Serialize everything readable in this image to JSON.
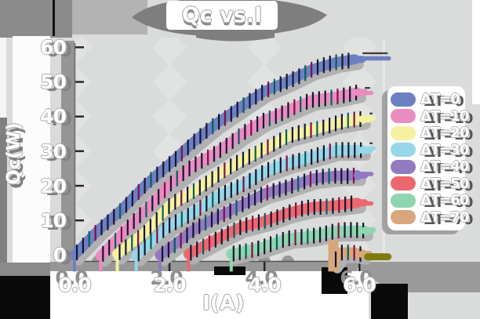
{
  "title": "Qc vs.I",
  "chart_data": {
    "type": "line",
    "title": "Qc vs.I",
    "xlabel": "I(A)",
    "ylabel": "Qc(W)",
    "xlim": [
      0,
      6.6
    ],
    "ylim": [
      0,
      62
    ],
    "xticks": [
      "0.0",
      "2.0",
      "4.0",
      "6.0"
    ],
    "xtick_values": [
      0,
      2,
      4,
      6
    ],
    "yticks": [
      "0",
      "10",
      "20",
      "30",
      "40",
      "50",
      "60"
    ],
    "ytick_values": [
      0,
      10,
      20,
      30,
      40,
      50,
      60
    ],
    "grid": "diamond-pattern columns at x gridlines",
    "legend_position": "right",
    "series": [
      {
        "name": "ΔT=0",
        "color": "#6d80c2",
        "points": [
          [
            0,
            0
          ],
          [
            0.5,
            7
          ],
          [
            1,
            13.5
          ],
          [
            1.5,
            20
          ],
          [
            2,
            26.5
          ],
          [
            2.5,
            32.5
          ],
          [
            3,
            38
          ],
          [
            3.5,
            43
          ],
          [
            4,
            47
          ],
          [
            4.5,
            50.5
          ],
          [
            5,
            53.5
          ],
          [
            5.5,
            55.6
          ],
          [
            5.9,
            56.8
          ]
        ],
        "tail": [
          6.62,
          56.8
        ],
        "tail_edge": true
      },
      {
        "name": "ΔT=10",
        "color": "#e98cc1",
        "points": [
          [
            0.55,
            0
          ],
          [
            1,
            6
          ],
          [
            1.5,
            13
          ],
          [
            2,
            20.5
          ],
          [
            2.5,
            25.5
          ],
          [
            3,
            30
          ],
          [
            3.5,
            34.5
          ],
          [
            4,
            39
          ],
          [
            4.5,
            42
          ],
          [
            5,
            44.5
          ],
          [
            5.5,
            46
          ],
          [
            5.95,
            46.8
          ]
        ],
        "tail": [
          6.25,
          46.8
        ],
        "tail_edge": true
      },
      {
        "name": "ΔT=20",
        "color": "#f5f1a1",
        "points": [
          [
            0.9,
            0
          ],
          [
            1.5,
            7
          ],
          [
            2,
            14
          ],
          [
            2.5,
            18.5
          ],
          [
            3,
            23
          ],
          [
            3.5,
            27
          ],
          [
            4,
            31
          ],
          [
            4.5,
            34
          ],
          [
            5,
            36.3
          ],
          [
            5.5,
            38
          ],
          [
            6.05,
            39.2
          ]
        ],
        "tail": [
          6.3,
          39.4
        ],
        "tail_edge": true
      },
      {
        "name": "ΔT=30",
        "color": "#97d7e7",
        "points": [
          [
            1.3,
            0
          ],
          [
            2,
            8.5
          ],
          [
            2.5,
            12.5
          ],
          [
            3,
            16.5
          ],
          [
            3.5,
            20.3
          ],
          [
            4,
            24
          ],
          [
            4.5,
            26.5
          ],
          [
            5,
            28.6
          ],
          [
            5.5,
            30
          ],
          [
            6.05,
            30.6
          ]
        ],
        "tail": [
          6.3,
          30.8
        ],
        "tail_edge": true
      },
      {
        "name": "ΔT=40",
        "color": "#9379c0",
        "points": [
          [
            1.8,
            0
          ],
          [
            2.5,
            7
          ],
          [
            3,
            11
          ],
          [
            3.5,
            14.5
          ],
          [
            4,
            17.5
          ],
          [
            4.5,
            20
          ],
          [
            5,
            21.8
          ],
          [
            5.5,
            23
          ],
          [
            5.95,
            23.2
          ]
        ],
        "tail": [
          6.25,
          23.4
        ],
        "tail_edge": false
      },
      {
        "name": "ΔT=50",
        "color": "#ec686e",
        "points": [
          [
            2.4,
            0
          ],
          [
            3,
            5
          ],
          [
            3.5,
            7.8
          ],
          [
            4,
            10
          ],
          [
            4.5,
            12.2
          ],
          [
            5,
            13.7
          ],
          [
            5.5,
            14.6
          ],
          [
            5.95,
            14.8
          ]
        ],
        "tail": [
          6.25,
          14.9
        ],
        "tail_edge": false
      },
      {
        "name": "ΔT=60",
        "color": "#8fd5af",
        "points": [
          [
            3.3,
            0
          ],
          [
            4,
            2.7
          ],
          [
            4.5,
            4.5
          ],
          [
            5,
            5.8
          ],
          [
            5.5,
            6.8
          ],
          [
            6.1,
            7.2
          ]
        ],
        "tail": [
          6.3,
          7.3
        ],
        "tail_edge": false
      },
      {
        "name": "ΔT=70",
        "color": "#d8a77c",
        "points": [
          [
            5.45,
            -2.5
          ],
          [
            5.6,
            0.6
          ],
          [
            5.85,
            1.0
          ],
          [
            6.05,
            0.5
          ]
        ],
        "tail": [
          6.6,
          -0.5
        ],
        "tail_color": "#7f7a10",
        "tail_width": 9,
        "tail_edge": false
      }
    ]
  }
}
